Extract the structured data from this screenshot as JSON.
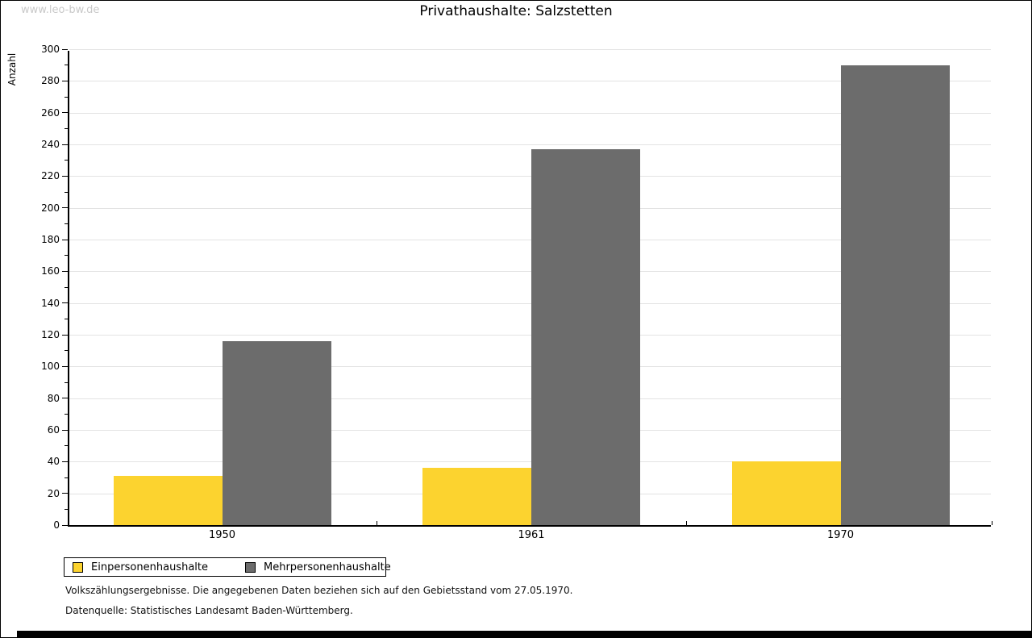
{
  "watermark": "www.leo-bw.de",
  "title": "Privathaushalte: Salzstetten",
  "chart_data": {
    "type": "bar",
    "title": "Privathaushalte: Salzstetten",
    "categories": [
      "1950",
      "1961",
      "1970"
    ],
    "series": [
      {
        "name": "Einpersonenhaushalte",
        "color": "#fcd32f",
        "values": [
          31,
          36,
          40
        ]
      },
      {
        "name": "Mehrpersonenhaushalte",
        "color": "#6c6c6c",
        "values": [
          116,
          237,
          290
        ]
      }
    ],
    "xlabel": "",
    "ylabel": "Anzahl",
    "ylim": [
      0,
      300
    ],
    "ytick_step": 20,
    "minor_tick_step": 10,
    "grid": true,
    "gridline_color": "#e3e3e3",
    "legend_position": "bottom-left"
  },
  "footer": {
    "note": "Volkszählungsergebnisse. Die angegebenen Daten beziehen sich auf den Gebietsstand vom 27.05.1970.",
    "source": "Datenquelle: Statistisches Landesamt Baden-Württemberg."
  }
}
